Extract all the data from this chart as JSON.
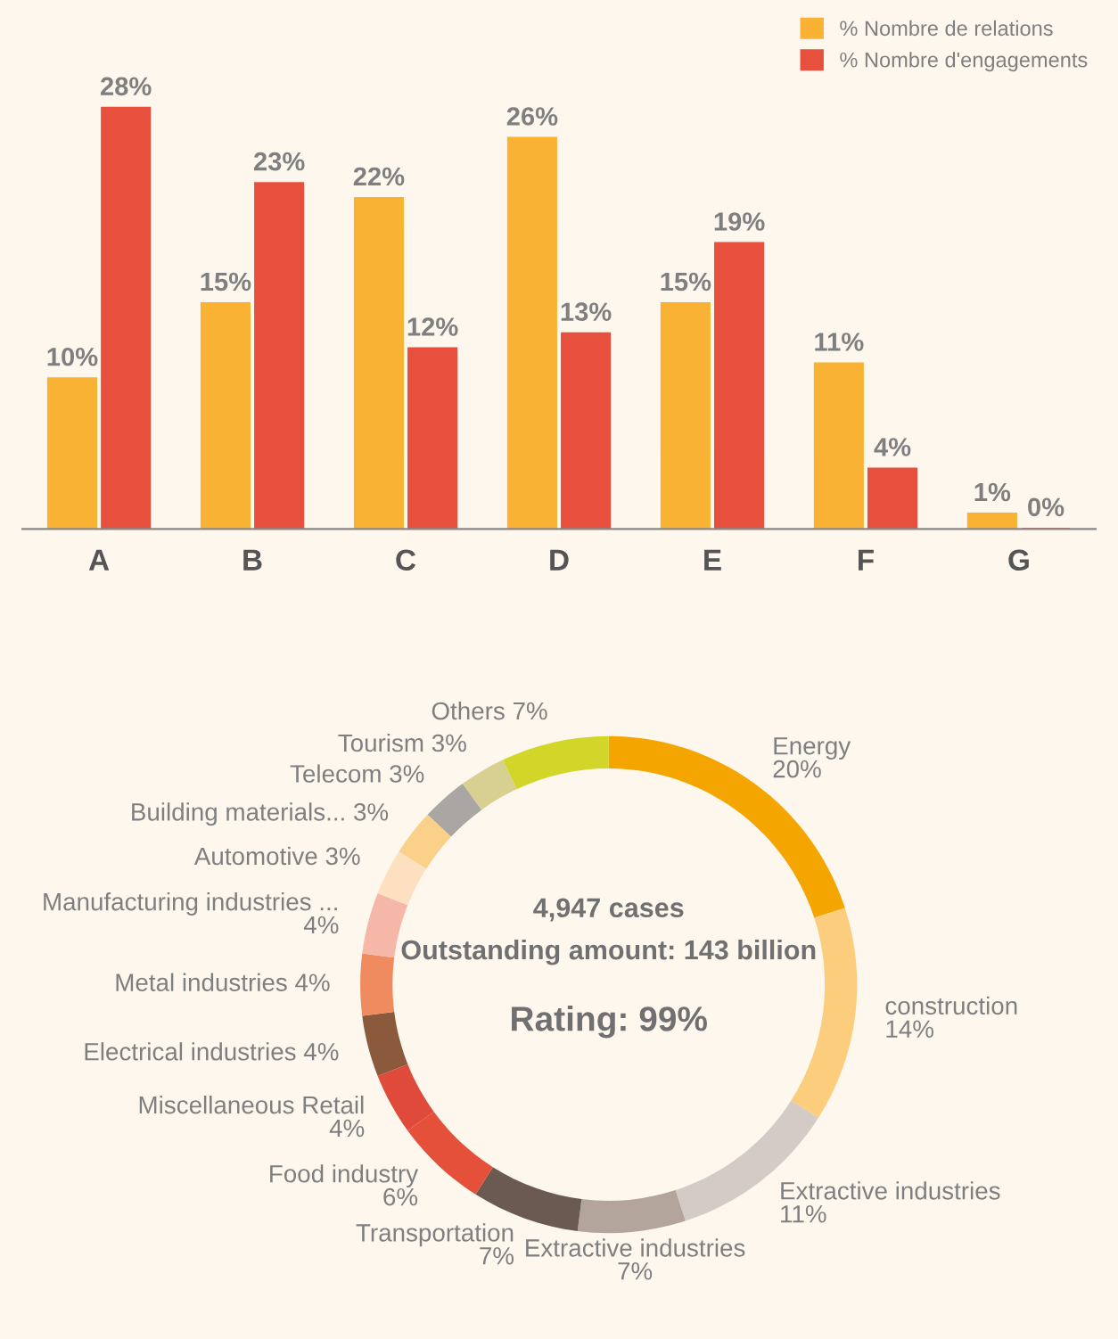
{
  "chart_data": [
    {
      "type": "bar",
      "categories": [
        "A",
        "B",
        "C",
        "D",
        "E",
        "F",
        "G"
      ],
      "legend": "top right",
      "series": [
        {
          "name": "% Nombre de relations",
          "color": "#f9b233",
          "values": [
            10,
            15,
            22,
            26,
            15,
            11,
            1
          ],
          "value_labels": [
            "10%",
            "15%",
            "22%",
            "26%",
            "15%",
            "11%",
            "1%"
          ]
        },
        {
          "name": "% Nombre d'engagements",
          "color": "#e8503e",
          "values": [
            28,
            23,
            12,
            13,
            19,
            4,
            0
          ],
          "value_labels": [
            "28%",
            "23%",
            "12%",
            "13%",
            "19%",
            "4%",
            "0%"
          ]
        }
      ]
    },
    {
      "type": "donut",
      "categories": [
        "Energy",
        "construction",
        "Extractive industries",
        "Extractive industries",
        "Transportation",
        "Food industry",
        "Miscellaneous Retail",
        "Electrical industries",
        "Metal industries",
        "Manufacturing industries ...",
        "Automotive",
        "Building materials...",
        "Telecom",
        "Tourism",
        "Others"
      ],
      "values": [
        20,
        14,
        11,
        7,
        7,
        6,
        4,
        4,
        4,
        4,
        3,
        3,
        3,
        3,
        7
      ],
      "value_labels": [
        "20%",
        "14%",
        "11%",
        "7%",
        "7%",
        "6%",
        "4%",
        "4%",
        "4%",
        "4%",
        "3%",
        "3%",
        "3%",
        "3%",
        "7%"
      ],
      "colors": [
        "#f5a500",
        "#fbcd7c",
        "#d4cbc6",
        "#b3a59b",
        "#6b5a52",
        "#e5503b",
        "#e04a3a",
        "#8b5a3c",
        "#f08b60",
        "#f5b8a8",
        "#fde0c0",
        "#fbd088",
        "#aaa6a3",
        "#d8d090",
        "#d2d629"
      ],
      "annotations": [
        "4,947 cases",
        "Outstanding amount: 143 billion",
        "Rating: 99%"
      ]
    }
  ]
}
